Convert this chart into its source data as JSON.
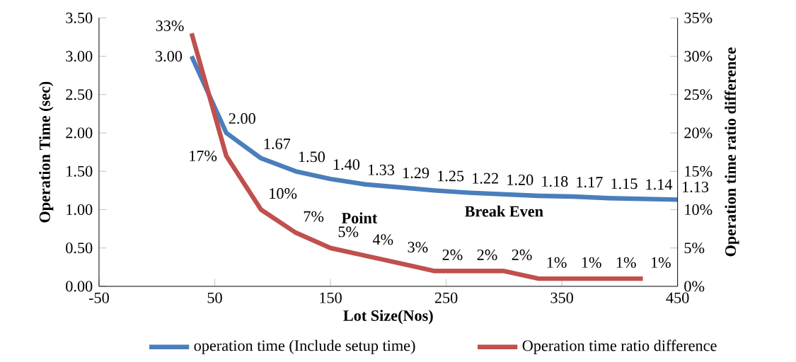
{
  "chart_data": {
    "type": "line",
    "xlabel": "Lot Size(Nos)",
    "ylabel": "Operation Time (sec)",
    "y2label": "Operation time ratio difference",
    "xlim": [
      -50,
      450
    ],
    "xticks": [
      -50,
      50,
      150,
      250,
      350,
      450
    ],
    "ylim": [
      0,
      3.5
    ],
    "yticks": [
      {
        "value": 0,
        "label": "0.00"
      },
      {
        "value": 0.5,
        "label": "0.50"
      },
      {
        "value": 1,
        "label": "1.00"
      },
      {
        "value": 1.5,
        "label": "1.50"
      },
      {
        "value": 2,
        "label": "2.00"
      },
      {
        "value": 2.5,
        "label": "2.50"
      },
      {
        "value": 3,
        "label": "3.00"
      },
      {
        "value": 3.5,
        "label": "3.50"
      }
    ],
    "y2lim": [
      0,
      35
    ],
    "y2ticks": [
      {
        "value": 0,
        "label": "0%"
      },
      {
        "value": 5,
        "label": "5%"
      },
      {
        "value": 10,
        "label": "10%"
      },
      {
        "value": 15,
        "label": "15%"
      },
      {
        "value": 20,
        "label": "20%"
      },
      {
        "value": 25,
        "label": "25%"
      },
      {
        "value": 30,
        "label": "30%"
      },
      {
        "value": 35,
        "label": "35%"
      }
    ],
    "grid": false,
    "legend": "bottom",
    "marker": "none",
    "line_style": "solid",
    "annotations": [
      "Break Even",
      "Point"
    ],
    "series": [
      {
        "name": "operation time (Include setup time)",
        "color": "#4a7ebb",
        "x": [
          30,
          60,
          90,
          120,
          150,
          180,
          210,
          240,
          270,
          300,
          330,
          360,
          390,
          420,
          450
        ],
        "values": [
          3.0,
          2.0,
          1.67,
          1.5,
          1.4,
          1.33,
          1.29,
          1.25,
          1.22,
          1.2,
          1.18,
          1.17,
          1.15,
          1.14,
          1.13
        ],
        "value_labels": [
          "3.00",
          "2.00",
          "1.67",
          "1.50",
          "1.40",
          "1.33",
          "1.29",
          "1.25",
          "1.22",
          "1.20",
          "1.18",
          "1.17",
          "1.15",
          "1.14",
          "1.13"
        ]
      },
      {
        "name": "Operation time ratio difference",
        "color": "#c0504d",
        "axis": "y2",
        "x": [
          30,
          60,
          90,
          120,
          150,
          180,
          210,
          240,
          270,
          300,
          330,
          360,
          390,
          420
        ],
        "values": [
          33,
          17,
          10,
          7,
          5,
          4,
          3,
          2,
          2,
          2,
          1,
          1,
          1,
          1
        ],
        "value_labels": [
          "33%",
          "17%",
          "10%",
          "7%",
          "5%",
          "4%",
          "3%",
          "2%",
          "2%",
          "2%",
          "1%",
          "1%",
          "1%",
          "1%"
        ]
      }
    ]
  }
}
